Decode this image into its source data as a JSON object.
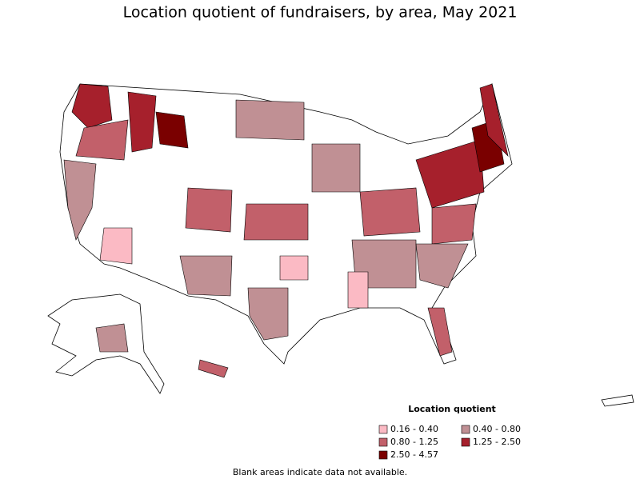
{
  "title": "Location quotient of fundraisers, by area, May 2021",
  "legend": {
    "title": "Location quotient",
    "items": [
      {
        "label": "0.16 - 0.40",
        "color": "#fbbac4"
      },
      {
        "label": "0.40 - 0.80",
        "color": "#c09094"
      },
      {
        "label": "0.80 - 1.25",
        "color": "#c2606a"
      },
      {
        "label": "1.25 - 2.50",
        "color": "#a6202c"
      },
      {
        "label": "2.50 - 4.57",
        "color": "#7a0000"
      }
    ]
  },
  "footnote": "Blank areas indicate data not available."
}
